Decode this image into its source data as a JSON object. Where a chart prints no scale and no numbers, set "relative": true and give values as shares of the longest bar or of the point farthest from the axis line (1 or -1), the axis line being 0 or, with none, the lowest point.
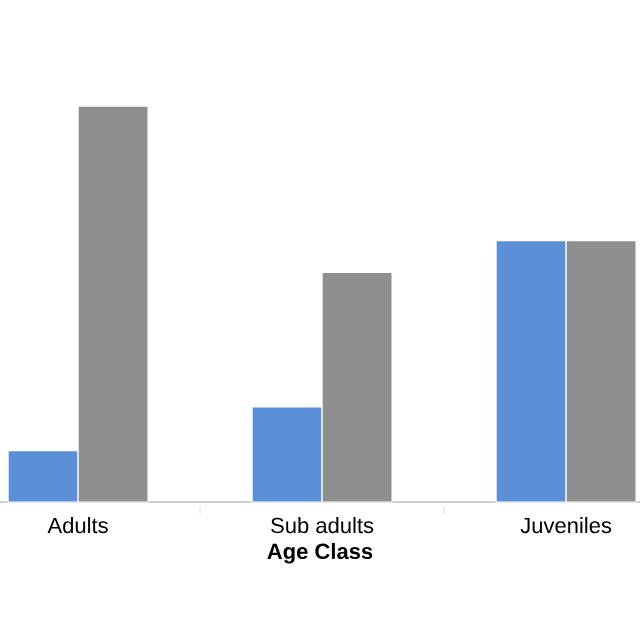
{
  "chart_data": {
    "type": "bar",
    "xlabel": "Age Class",
    "categories": [
      "Adults",
      "Sub adults",
      "Juveniles"
    ],
    "relative": true,
    "series": [
      {
        "color": "#5b8fd8",
        "values": [
          0.13,
          0.24,
          0.66
        ]
      },
      {
        "color": "#8f8f8f",
        "values": [
          1,
          0.58,
          0.66
        ]
      }
    ]
  }
}
